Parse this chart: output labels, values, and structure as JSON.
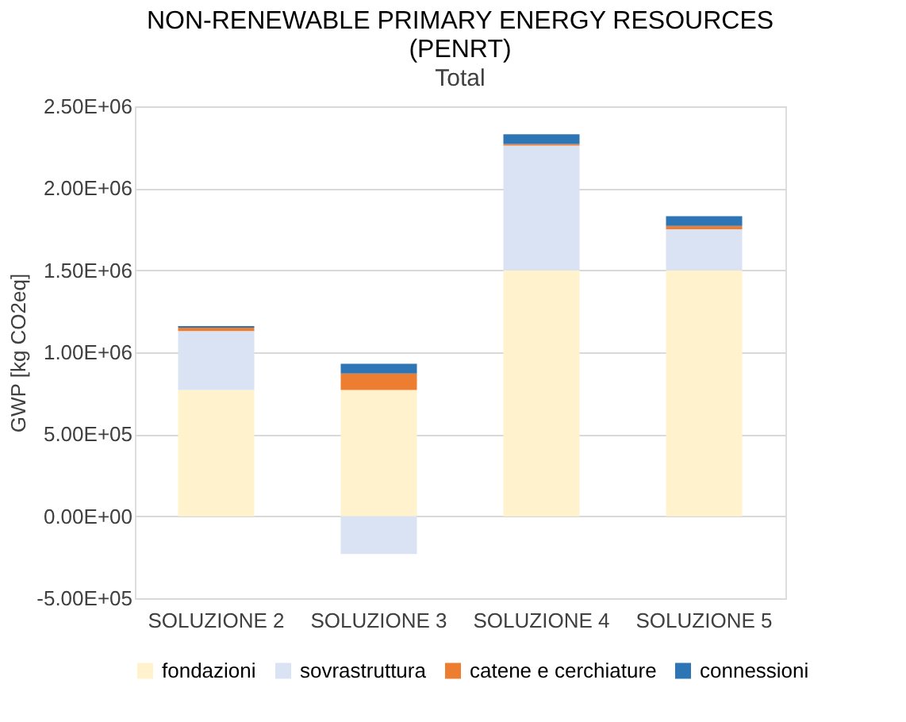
{
  "chart_data": {
    "type": "bar",
    "title": [
      "NON-RENEWABLE PRIMARY ENERGY RESOURCES",
      "(PENRT)"
    ],
    "subtitle": "Total",
    "ylabel": "GWP [kg CO2eq]",
    "categories": [
      "SOLUZIONE 2",
      "SOLUZIONE 3",
      "SOLUZIONE 4",
      "SOLUZIONE 5"
    ],
    "stacked": true,
    "series": [
      {
        "name": "fondazioni",
        "color": "#fff2cc",
        "values": [
          770000,
          770000,
          1500000,
          1500000
        ]
      },
      {
        "name": "sovrastruttura",
        "color": "#dae3f3",
        "values": [
          360000,
          -230000,
          760000,
          250000
        ]
      },
      {
        "name": "catene e cerchiature",
        "color": "#ed7d31",
        "values": [
          20000,
          100000,
          10000,
          20000
        ]
      },
      {
        "name": "connessioni",
        "color": "#2e75b6",
        "values": [
          10000,
          60000,
          60000,
          60000
        ]
      }
    ],
    "ylim": [
      -500000,
      2500000
    ],
    "yticks": [
      {
        "value": -500000,
        "label": "-5.00E+05"
      },
      {
        "value": 0,
        "label": "0.00E+00"
      },
      {
        "value": 500000,
        "label": "5.00E+05"
      },
      {
        "value": 1000000,
        "label": "1.00E+06"
      },
      {
        "value": 1500000,
        "label": "1.50E+06"
      },
      {
        "value": 2000000,
        "label": "2.00E+06"
      },
      {
        "value": 2500000,
        "label": "2.50E+06"
      }
    ],
    "grid": "y",
    "legend": "bottom"
  }
}
